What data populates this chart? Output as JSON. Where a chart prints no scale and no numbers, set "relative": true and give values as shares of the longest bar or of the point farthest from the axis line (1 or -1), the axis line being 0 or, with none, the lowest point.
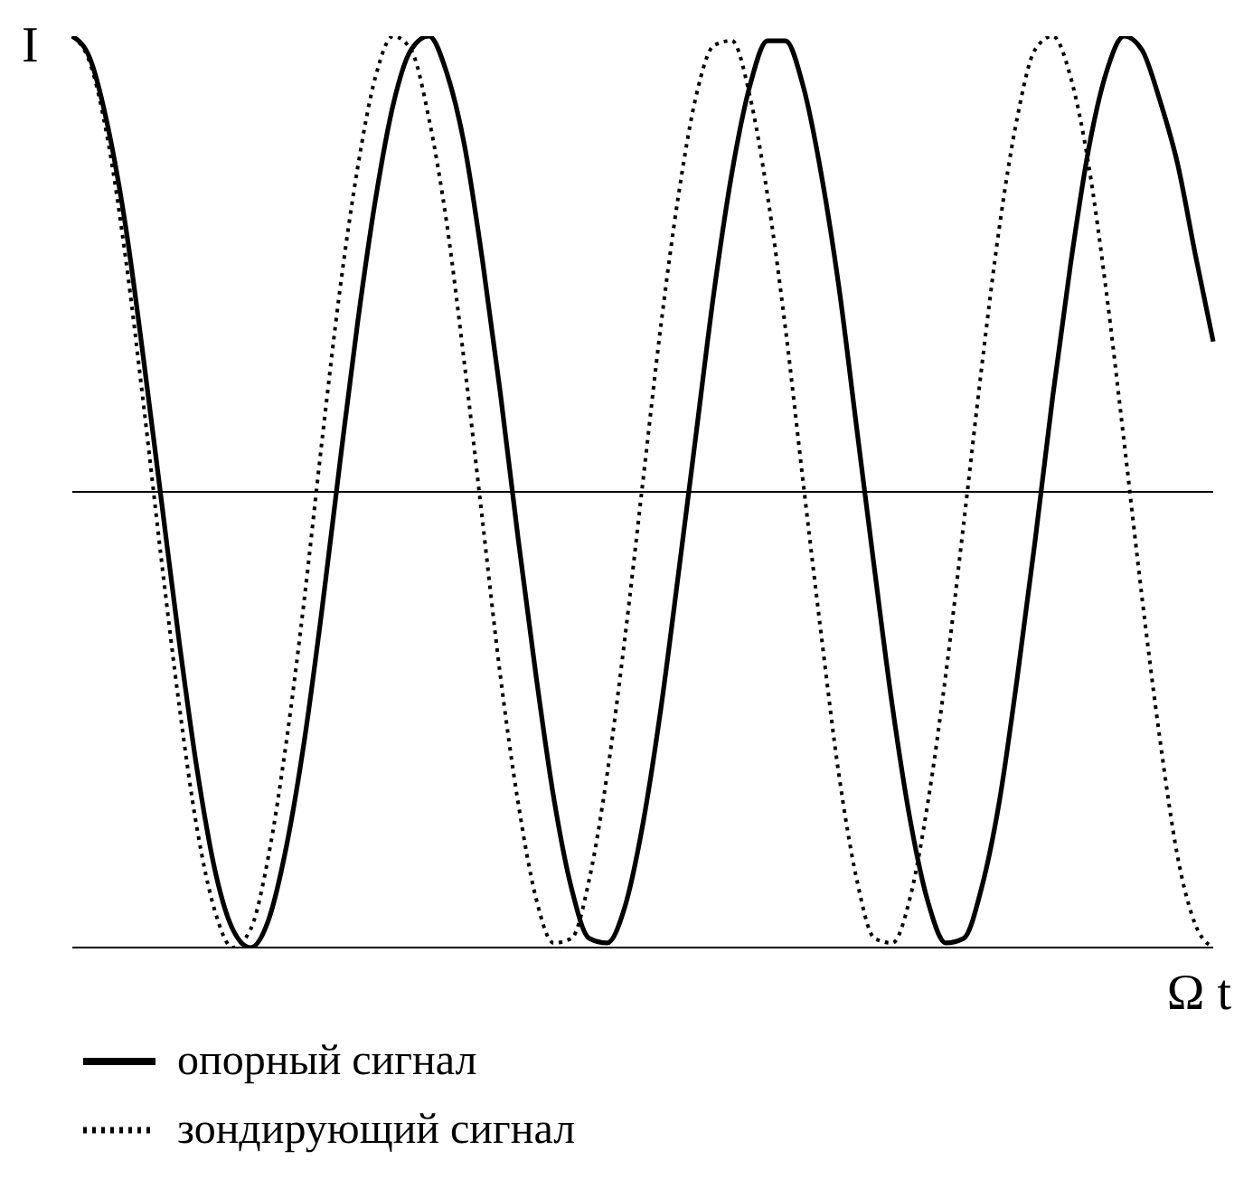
{
  "chart_data": {
    "type": "line",
    "xlabel": "Ω t",
    "ylabel": "I",
    "relative": true,
    "grid": false,
    "legend": "bottom",
    "marker": "none",
    "categories": [
      null,
      null,
      null,
      null,
      null,
      null,
      null,
      null,
      null,
      null,
      null,
      null,
      null,
      null,
      null,
      null,
      null,
      null,
      null,
      null,
      null,
      null,
      null,
      null,
      null,
      null,
      null,
      null,
      null,
      null,
      null,
      null,
      null,
      null,
      null,
      null,
      null,
      null,
      null,
      null,
      null,
      null,
      null,
      null,
      null,
      null,
      null,
      null,
      null,
      null,
      null,
      null,
      null,
      null,
      null,
      null,
      null,
      null,
      null,
      null,
      null,
      null,
      null,
      null,
      null
    ],
    "series": [
      {
        "name": "опорный сигнал",
        "color": "#000000",
        "line_style": "solid",
        "values": [
          1.0,
          0.95,
          0.8,
          0.58,
          0.29,
          -0.02,
          -0.33,
          -0.61,
          -0.83,
          -0.96,
          -1.0,
          -0.94,
          -0.78,
          -0.55,
          -0.26,
          0.06,
          0.37,
          0.64,
          0.85,
          0.97,
          1.0,
          0.92,
          0.76,
          0.51,
          0.22,
          -0.1,
          -0.4,
          -0.67,
          -0.87,
          -0.98,
          -0.99,
          -0.91,
          -0.73,
          -0.48,
          -0.18,
          0.13,
          0.44,
          0.7,
          0.89,
          0.99,
          0.99,
          0.89,
          0.7,
          0.45,
          0.14,
          -0.17,
          -0.47,
          -0.72,
          -0.9,
          -0.99,
          -0.98,
          -0.87,
          -0.68,
          -0.41,
          -0.11,
          0.21,
          0.5,
          0.75,
          0.92,
          1.0,
          0.97,
          0.86,
          0.72,
          0.52,
          0.33
        ]
      },
      {
        "name": "зондирующий сигнал",
        "color": "#000000",
        "line_style": "dotted",
        "values": [
          1.0,
          0.94,
          0.77,
          0.51,
          0.19,
          -0.15,
          -0.47,
          -0.74,
          -0.92,
          -1.0,
          -0.96,
          -0.8,
          -0.55,
          -0.24,
          0.11,
          0.44,
          0.71,
          0.91,
          1.0,
          0.97,
          0.82,
          0.59,
          0.28,
          -0.06,
          -0.4,
          -0.68,
          -0.89,
          -0.99,
          -0.98,
          -0.85,
          -0.62,
          -0.32,
          0.02,
          0.36,
          0.65,
          0.87,
          0.98,
          0.99,
          0.87,
          0.65,
          0.36,
          0.02,
          -0.31,
          -0.62,
          -0.85,
          -0.98,
          -0.99,
          -0.89,
          -0.68,
          -0.4,
          -0.07,
          0.27,
          0.58,
          0.82,
          0.97,
          1.0,
          0.91,
          0.72,
          0.44,
          0.11,
          -0.23,
          -0.54,
          -0.8,
          -0.95,
          -1.0
        ]
      }
    ]
  }
}
